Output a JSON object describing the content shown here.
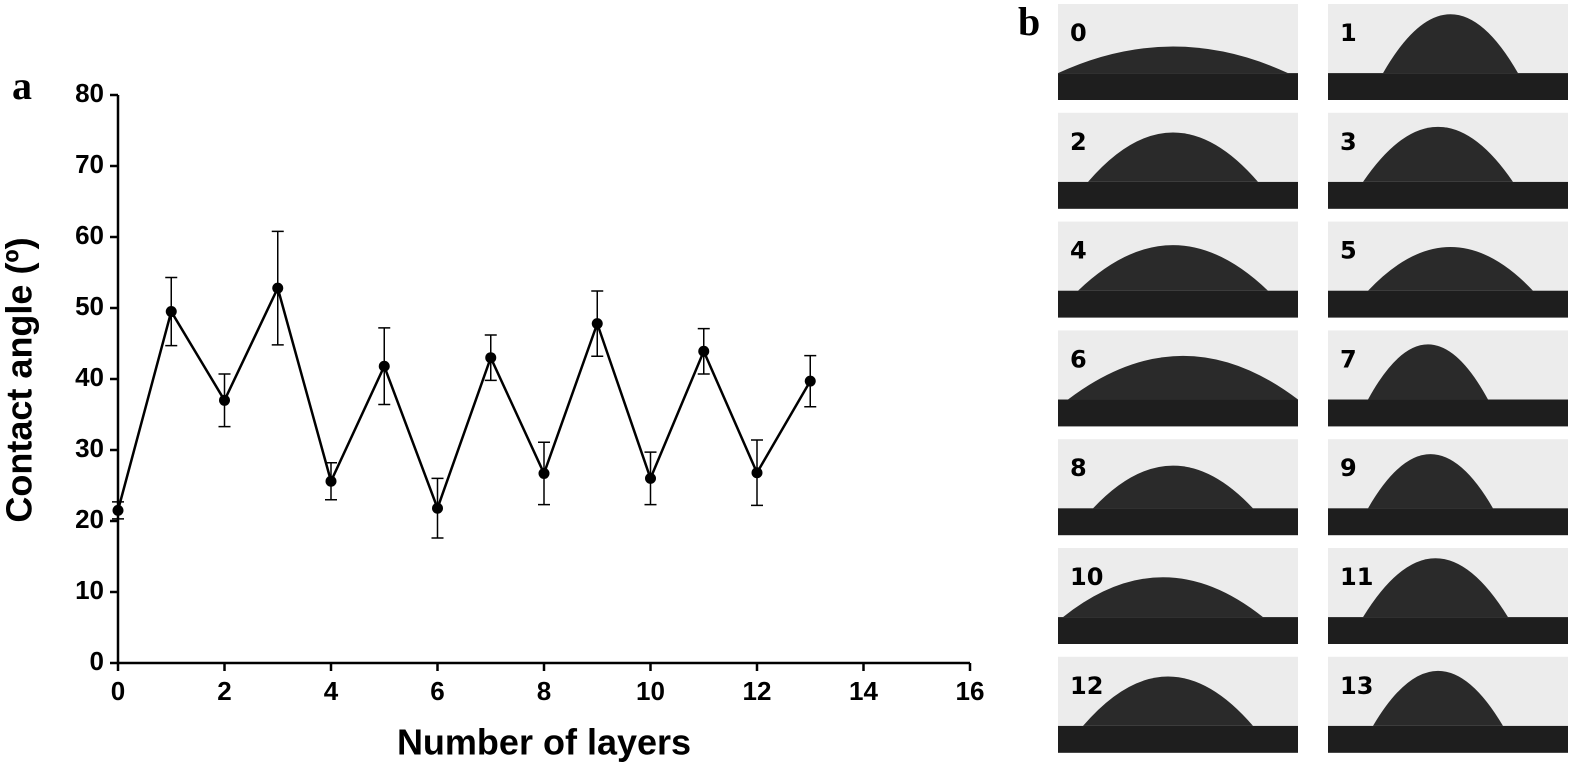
{
  "chart_data": {
    "type": "line",
    "panel_label": "a",
    "xlabel": "Number of layers",
    "ylabel": "Contact angle (º)",
    "x": [
      0,
      1,
      2,
      3,
      4,
      5,
      6,
      7,
      8,
      9,
      10,
      11,
      12,
      13
    ],
    "series": [
      {
        "color": "#000000",
        "values": [
          21.5,
          49.5,
          37,
          52.8,
          25.6,
          41.8,
          21.8,
          43,
          26.7,
          47.8,
          26,
          43.9,
          26.8,
          39.7
        ],
        "errors": [
          1.2,
          4.8,
          3.7,
          8,
          2.6,
          5.4,
          4.2,
          3.2,
          4.4,
          4.6,
          3.7,
          3.2,
          4.6,
          3.6
        ]
      }
    ],
    "xlim": [
      0,
      16
    ],
    "ylim": [
      0,
      80
    ],
    "xticks": [
      0,
      2,
      4,
      6,
      8,
      10,
      12,
      14,
      16
    ],
    "yticks": [
      0,
      10,
      20,
      30,
      40,
      50,
      60,
      70,
      80
    ]
  },
  "images": {
    "panel_label": "b",
    "labels": [
      "0",
      "1",
      "2",
      "3",
      "4",
      "5",
      "6",
      "7",
      "8",
      "9",
      "10",
      "11",
      "12",
      "13"
    ]
  }
}
